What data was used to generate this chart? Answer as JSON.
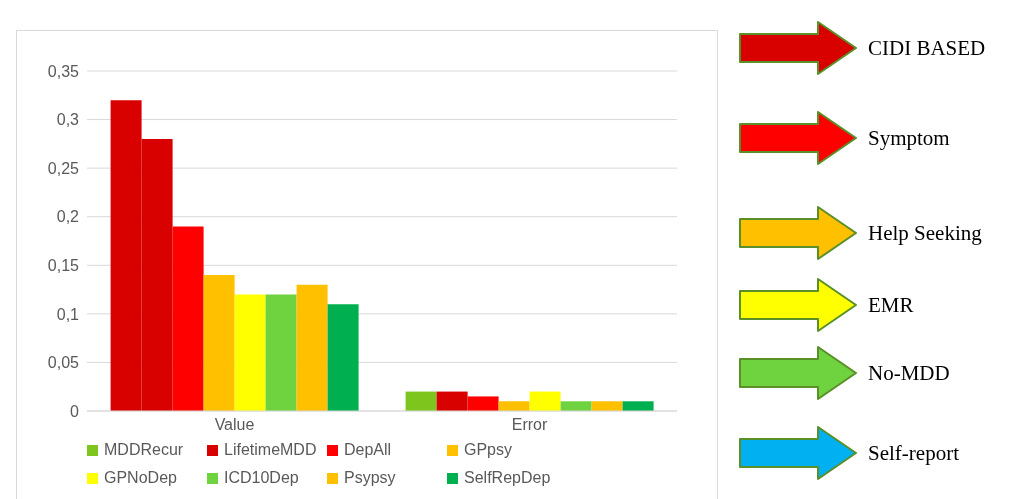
{
  "chart_data": {
    "type": "bar",
    "categories": [
      "Value",
      "Error"
    ],
    "series": [
      {
        "name": "MDDRecur",
        "color": "#7ec61e",
        "colors": [
          "#d90000",
          "#7ec61e"
        ],
        "values": [
          0.32,
          0.02
        ]
      },
      {
        "name": "LifetimeMDD",
        "color": "#d90000",
        "values": [
          0.28,
          0.02
        ]
      },
      {
        "name": "DepAll",
        "color": "#ff0000",
        "values": [
          0.19,
          0.015
        ]
      },
      {
        "name": "GPpsy",
        "color": "#ffc000",
        "values": [
          0.14,
          0.01
        ]
      },
      {
        "name": "GPNoDep",
        "color": "#ffff00",
        "values": [
          0.12,
          0.02
        ]
      },
      {
        "name": "ICD10Dep",
        "color": "#6fd23f",
        "values": [
          0.12,
          0.01
        ]
      },
      {
        "name": "Psypsy",
        "color": "#ffc000",
        "values": [
          0.13,
          0.01
        ]
      },
      {
        "name": "SelfRepDep",
        "color": "#00b050",
        "values": [
          0.11,
          0.01
        ]
      }
    ],
    "ylim": [
      0,
      0.35
    ],
    "yticks": [
      {
        "value": 0,
        "label": "0"
      },
      {
        "value": 0.05,
        "label": "0,05"
      },
      {
        "value": 0.1,
        "label": "0,1"
      },
      {
        "value": 0.15,
        "label": "0,15"
      },
      {
        "value": 0.2,
        "label": "0,2"
      },
      {
        "value": 0.25,
        "label": "0,25"
      },
      {
        "value": 0.3,
        "label": "0,3"
      },
      {
        "value": 0.35,
        "label": "0,35"
      }
    ],
    "grid": "y",
    "legend": "bottom",
    "annotations": [
      "CIDI BASED",
      "Symptom",
      "Help Seeking",
      "EMR",
      "No-MDD",
      "Self-report"
    ]
  }
}
